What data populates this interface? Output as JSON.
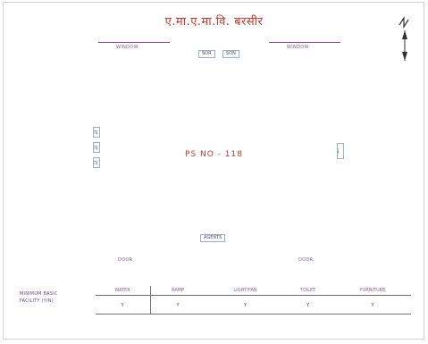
{
  "title": "ए.मा.ए.मा.वि. बरसीर",
  "top_labels": {
    "left": "WINDOW",
    "right": "WINDOW"
  },
  "top_boxes": [
    "SOR",
    "SON"
  ],
  "left_boxes": [
    "JT",
    "JT",
    "JT"
  ],
  "right_box": "JT",
  "center_label": "PS NO - 118",
  "bottom_box": "AGENTS",
  "doors": {
    "left": "DOOR",
    "right": "DOOR"
  },
  "facility_table": {
    "row_label_1": "MINIMUM BASIC",
    "row_label_2": "FACILITY (Y/N)",
    "columns": [
      "WATER",
      "RAMP",
      "LIGHT/FAN",
      "TOILET",
      "FURNITURE"
    ],
    "values": [
      "Y",
      "Y",
      "Y",
      "Y",
      "Y"
    ]
  },
  "colors": {
    "title": "#c0392b",
    "accent": "#8a5aa0",
    "box_border": "#9aaed0"
  }
}
